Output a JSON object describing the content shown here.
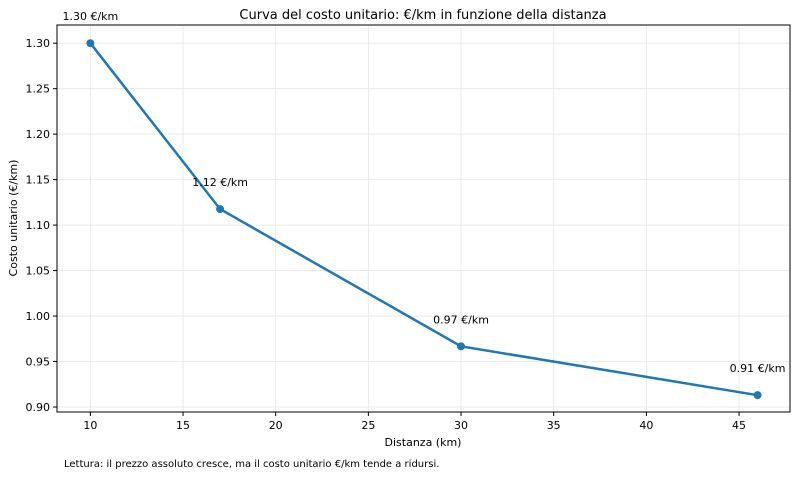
{
  "chart_data": {
    "type": "line",
    "title": "Curva del costo unitario: €/km in funzione della distanza",
    "xlabel": "Distanza (km)",
    "ylabel": "Costo unitario (€/km)",
    "x": [
      10,
      17,
      30,
      46
    ],
    "values": [
      1.3,
      1.1176,
      0.9667,
      0.913
    ],
    "data_labels": [
      "1.30 €/km",
      "1.12 €/km",
      "0.97 €/km",
      "0.91 €/km"
    ],
    "xlim": [
      8.2,
      47.75
    ],
    "ylim": [
      0.8945,
      1.32
    ],
    "xticks": [
      10,
      15,
      20,
      25,
      30,
      35,
      40,
      45
    ],
    "yticks": [
      "0.90",
      "0.95",
      "1.00",
      "1.05",
      "1.10",
      "1.15",
      "1.20",
      "1.25",
      "1.30"
    ],
    "grid": true,
    "color": "#1f77b4",
    "footnote": "Lettura: il prezzo assoluto cresce, ma il costo unitario €/km tende a ridursi."
  }
}
